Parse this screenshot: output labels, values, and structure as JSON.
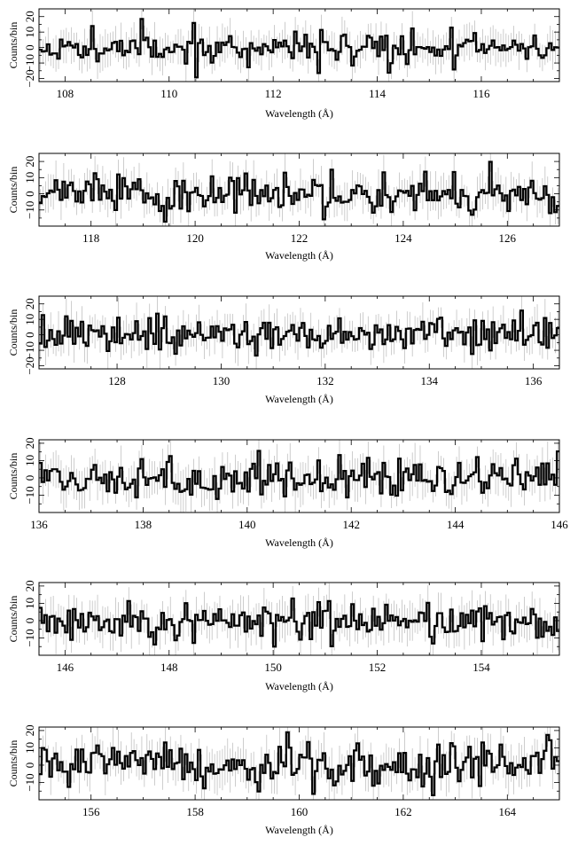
{
  "chart_data": [
    {
      "type": "line",
      "xlabel": "Wavelength (Å)",
      "ylabel": "Counts/bin",
      "xlim": [
        107.5,
        117.5
      ],
      "ylim": [
        -22,
        25
      ],
      "x_ticks": [
        "108",
        "110",
        "112",
        "114",
        "116"
      ],
      "y_ticks": [
        "−20",
        "−10",
        "0",
        "10",
        "20"
      ],
      "seed": 11,
      "bin_width": 0.05,
      "series": [
        {
          "values": []
        }
      ]
    },
    {
      "type": "line",
      "xlabel": "Wavelength (Å)",
      "ylabel": "Counts/bin",
      "xlim": [
        117,
        127
      ],
      "ylim": [
        -20,
        25
      ],
      "x_ticks": [
        "118",
        "120",
        "122",
        "124",
        "126"
      ],
      "y_ticks": [
        "−10",
        "0",
        "10",
        "20"
      ],
      "seed": 23,
      "bin_width": 0.05,
      "series": [
        {
          "values": []
        }
      ]
    },
    {
      "type": "line",
      "xlabel": "Wavelength (Å)",
      "ylabel": "Counts/bin",
      "xlim": [
        126.5,
        136.5
      ],
      "ylim": [
        -22,
        25
      ],
      "x_ticks": [
        "128",
        "130",
        "132",
        "134",
        "136"
      ],
      "y_ticks": [
        "−20",
        "−10",
        "0",
        "10",
        "20"
      ],
      "seed": 37,
      "bin_width": 0.05,
      "series": [
        {
          "values": []
        }
      ]
    },
    {
      "type": "line",
      "xlabel": "Wavelength (Å)",
      "ylabel": "Counts/bin",
      "xlim": [
        136,
        146
      ],
      "ylim": [
        -20,
        22
      ],
      "x_ticks": [
        "136",
        "138",
        "140",
        "142",
        "144",
        "146"
      ],
      "y_ticks": [
        "−10",
        "0",
        "10",
        "20"
      ],
      "seed": 41,
      "bin_width": 0.05,
      "series": [
        {
          "values": []
        }
      ]
    },
    {
      "type": "line",
      "xlabel": "Wavelength (Å)",
      "ylabel": "Counts/bin",
      "xlim": [
        145.5,
        155.5
      ],
      "ylim": [
        -20,
        22
      ],
      "x_ticks": [
        "146",
        "148",
        "150",
        "152",
        "154"
      ],
      "y_ticks": [
        "−10",
        "0",
        "10",
        "20"
      ],
      "seed": 53,
      "bin_width": 0.05,
      "series": [
        {
          "values": []
        }
      ]
    },
    {
      "type": "line",
      "xlabel": "Wavelength (Å)",
      "ylabel": "Counts/bin",
      "xlim": [
        155,
        165
      ],
      "ylim": [
        -20,
        22
      ],
      "x_ticks": [
        "156",
        "158",
        "160",
        "162",
        "164"
      ],
      "y_ticks": [
        "−10",
        "0",
        "10",
        "20"
      ],
      "seed": 67,
      "bin_width": 0.05,
      "series": [
        {
          "values": []
        }
      ]
    }
  ]
}
